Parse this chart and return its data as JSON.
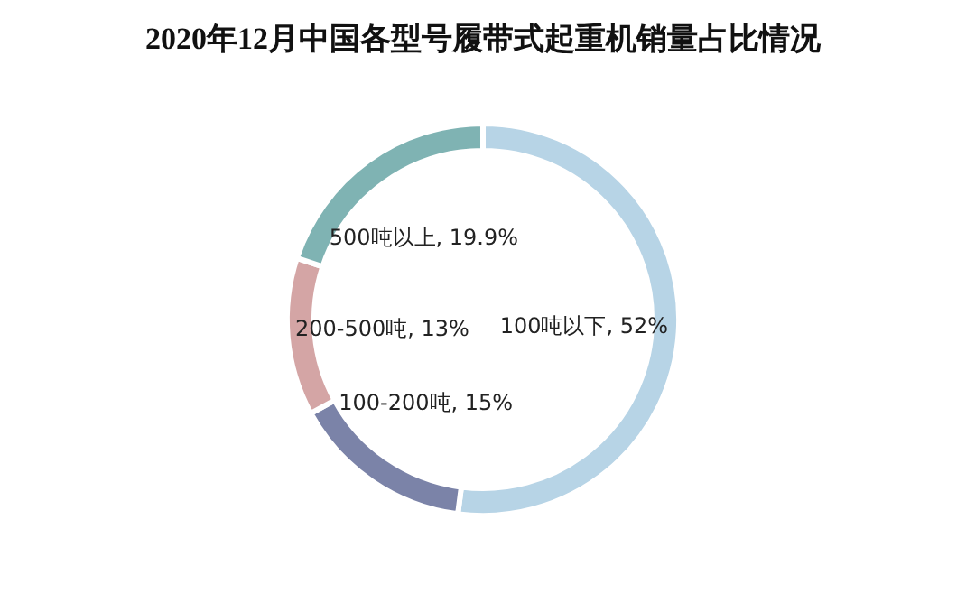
{
  "chart_data": {
    "type": "donut",
    "title": "2020年12月中国各型号履带式起重机销量占比情况",
    "categories": [
      "100吨以下",
      "100-200吨",
      "200-500吨",
      "500吨以上"
    ],
    "values": [
      52,
      15,
      13,
      19.9
    ],
    "value_labels": [
      ", 52%",
      ", 15%",
      ", 13%",
      ", 19.9%"
    ],
    "colors": [
      "#b7d4e6",
      "#7b83a8",
      "#d4a5a5",
      "#7fb3b3"
    ],
    "data_labels": true,
    "legend": false
  }
}
